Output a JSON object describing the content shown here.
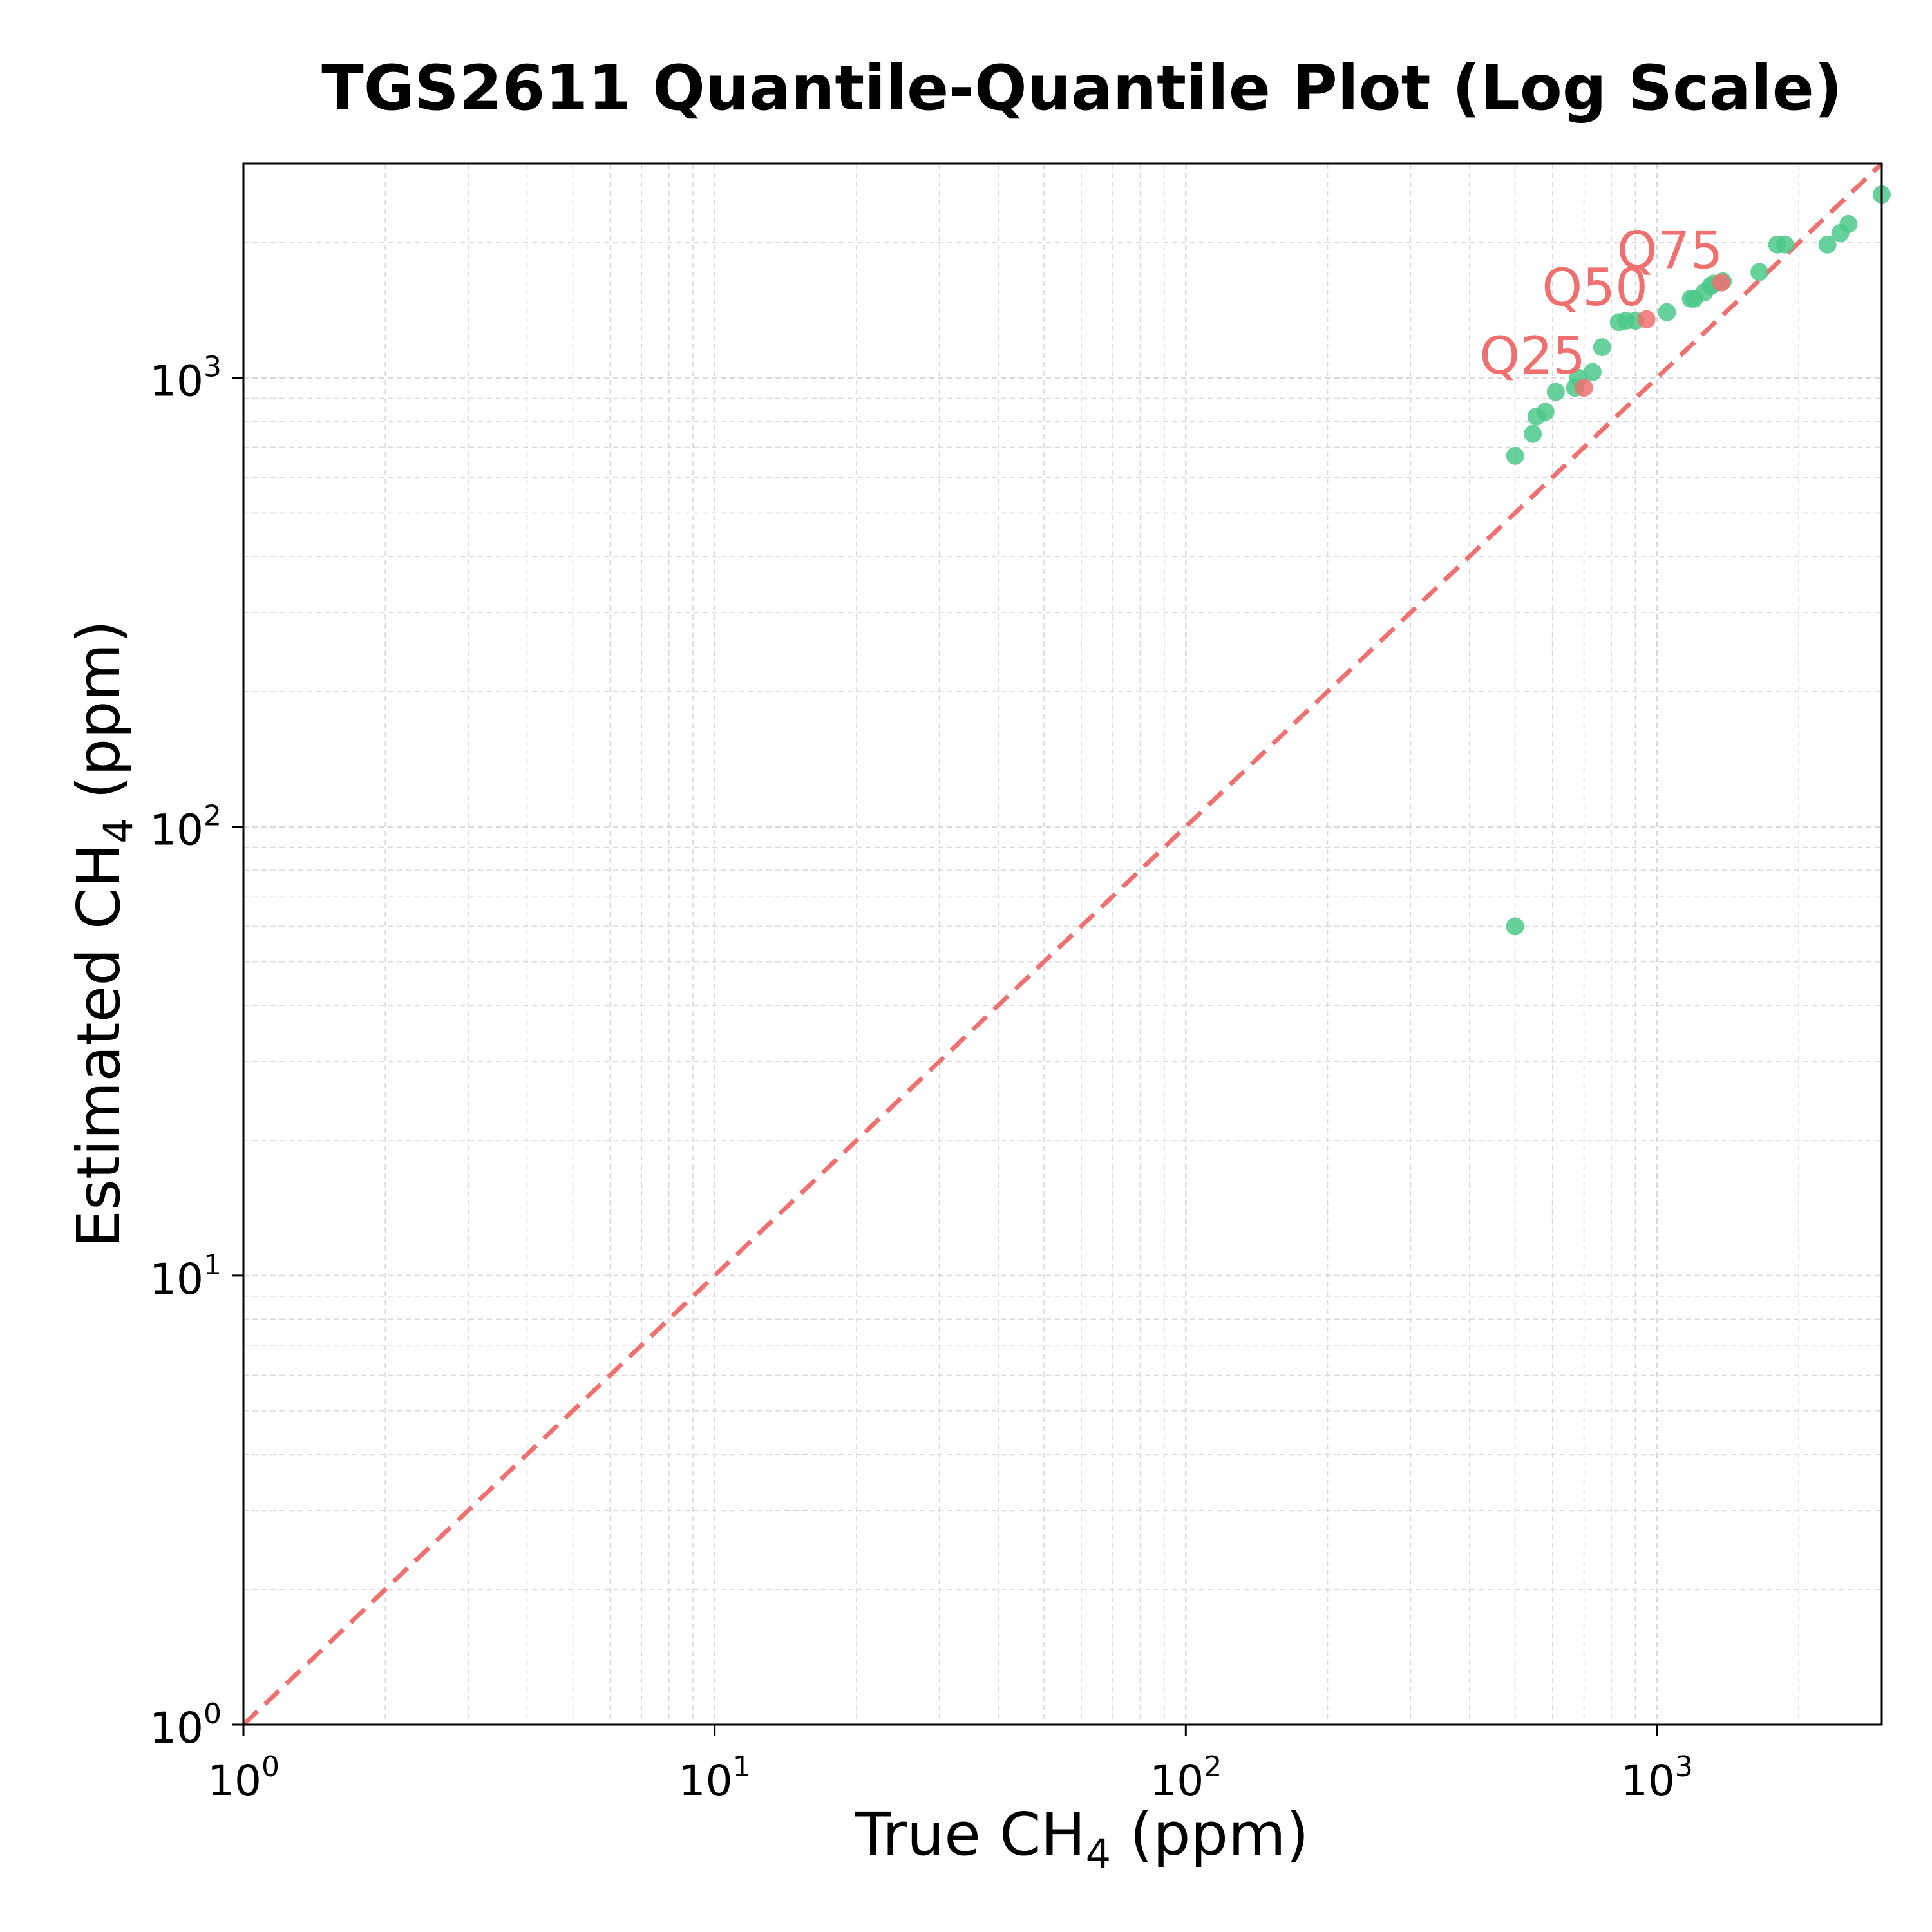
{
  "chart_data": {
    "type": "scatter",
    "title": "TGS2611 Quantile-Quantile Plot (Log Scale)",
    "xlabel": {
      "prefix": "True CH",
      "subscript": "4",
      "suffix": " (ppm)"
    },
    "ylabel": {
      "prefix": "Estimated CH",
      "subscript": "4",
      "suffix": " (ppm)"
    },
    "xscale": "log",
    "yscale": "log",
    "xlim": [
      1,
      3000
    ],
    "ylim": [
      1,
      3000
    ],
    "grid": true,
    "x_ticks": [
      {
        "value": 1,
        "base": "10",
        "exp": "0"
      },
      {
        "value": 10,
        "base": "10",
        "exp": "1"
      },
      {
        "value": 100,
        "base": "10",
        "exp": "2"
      },
      {
        "value": 1000,
        "base": "10",
        "exp": "3"
      }
    ],
    "y_ticks": [
      {
        "value": 1,
        "base": "10",
        "exp": "0"
      },
      {
        "value": 10,
        "base": "10",
        "exp": "1"
      },
      {
        "value": 100,
        "base": "10",
        "exp": "2"
      },
      {
        "value": 1000,
        "base": "10",
        "exp": "3"
      }
    ],
    "reference_line": {
      "style": "dashed",
      "from": [
        1,
        1
      ],
      "to": [
        3000,
        3000
      ],
      "color": "#f07070"
    },
    "series": [
      {
        "color": "#4cc98a",
        "points": [
          [
            500,
            60
          ],
          [
            500,
            670
          ],
          [
            545,
            750
          ],
          [
            555,
            820
          ],
          [
            580,
            840
          ],
          [
            610,
            930
          ],
          [
            670,
            950
          ],
          [
            680,
            1000
          ],
          [
            730,
            1030
          ],
          [
            765,
            1170
          ],
          [
            830,
            1330
          ],
          [
            860,
            1340
          ],
          [
            900,
            1340
          ],
          [
            1050,
            1400
          ],
          [
            1180,
            1500
          ],
          [
            1200,
            1500
          ],
          [
            1260,
            1550
          ],
          [
            1300,
            1600
          ],
          [
            1320,
            1620
          ],
          [
            1380,
            1640
          ],
          [
            1650,
            1720
          ],
          [
            1800,
            1980
          ],
          [
            1870,
            1980
          ],
          [
            2300,
            1980
          ],
          [
            2450,
            2100
          ],
          [
            2550,
            2200
          ],
          [
            3000,
            2560
          ]
        ]
      },
      {
        "color": "#f07070",
        "points": [
          [
            700,
            950
          ],
          [
            950,
            1350
          ],
          [
            1370,
            1630
          ]
        ]
      }
    ],
    "annotations": [
      {
        "text": "Q25",
        "x": 700,
        "y": 950
      },
      {
        "text": "Q50",
        "x": 950,
        "y": 1350
      },
      {
        "text": "Q75",
        "x": 1370,
        "y": 1630
      }
    ],
    "colors": {
      "points": "#4cc98a",
      "quantiles": "#f07070",
      "grid": "#d9d9d9"
    }
  }
}
